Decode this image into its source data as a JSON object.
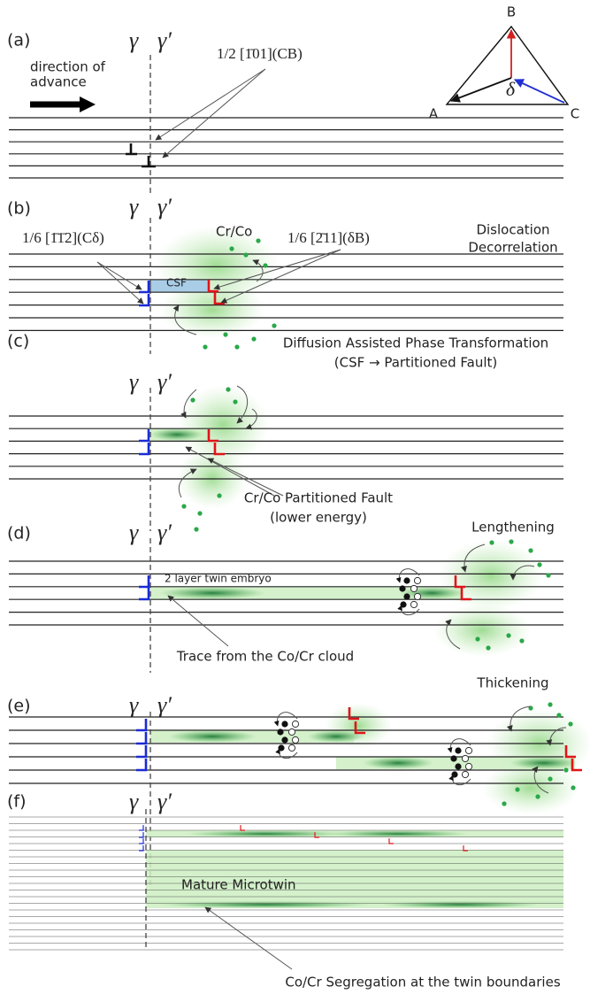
{
  "phase_labels": {
    "gamma": "γ",
    "gamma_prime": "γ′"
  },
  "triangle": {
    "A": "A",
    "B": "B",
    "C": "C",
    "delta": "δ"
  },
  "panels": [
    {
      "label": "(a)",
      "note": [
        "direction of",
        "advance"
      ],
      "burgers": "1/2 [1̄01](CB)"
    },
    {
      "label": "(b)",
      "burgers_left": "1/6 [1̄1̄2](Cδ)",
      "solute": "Cr/Co",
      "burgers_right": "1/6 [2̄11](δB)",
      "fault": "CSF",
      "title": [
        "Dislocation",
        "Decorrelation"
      ]
    },
    {
      "label": "(c)",
      "title": [
        "Diffusion Assisted Phase Transformation",
        "(CSF → Partitioned Fault)"
      ],
      "caption": [
        "Cr/Co Partitioned Fault",
        "(lower energy)"
      ]
    },
    {
      "label": "(d)",
      "title": "Lengthening",
      "embryo": "2 layer twin embryo",
      "caption": "Trace from the Co/Cr cloud"
    },
    {
      "label": "(e)",
      "title": "Thickening"
    },
    {
      "label": "(f)",
      "twin": "Mature Microtwin",
      "caption": "Co/Cr Segregation at the twin boundaries"
    }
  ]
}
